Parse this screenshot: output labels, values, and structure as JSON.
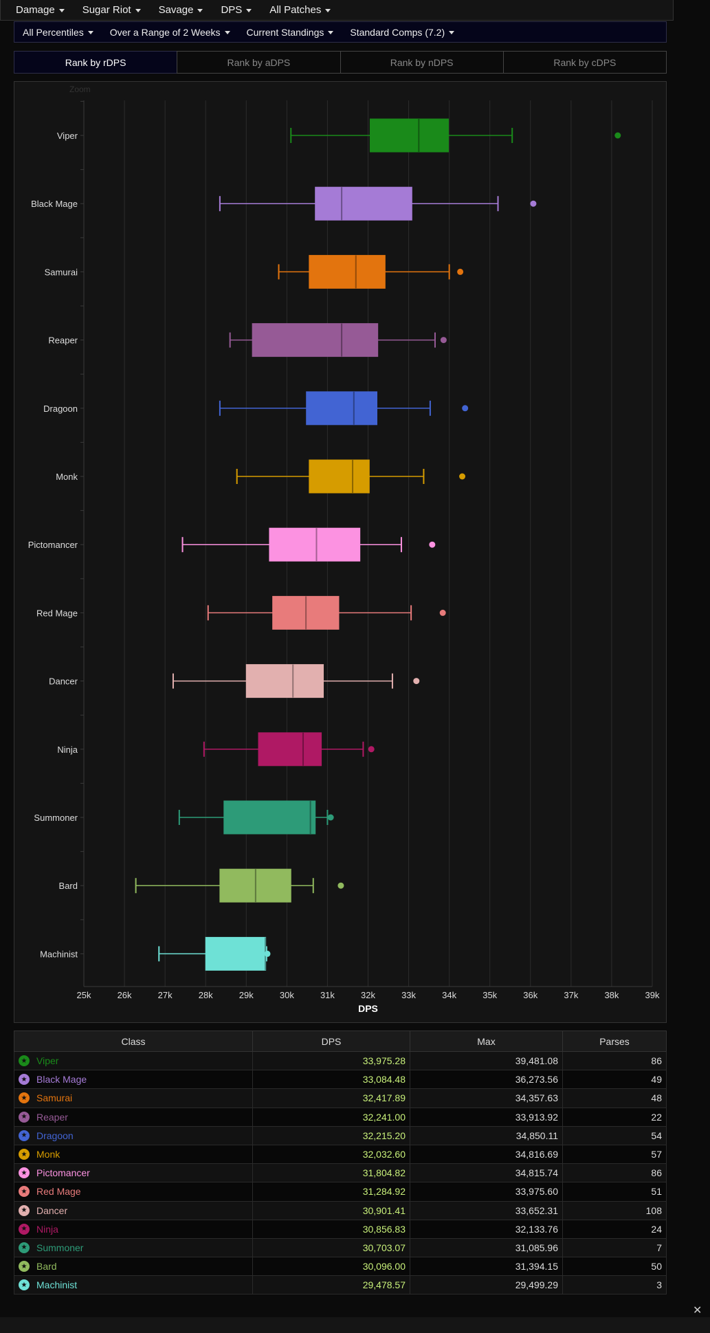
{
  "menu": [
    {
      "label": "Damage"
    },
    {
      "label": "Sugar Riot"
    },
    {
      "label": "Savage"
    },
    {
      "label": "DPS"
    },
    {
      "label": "All Patches"
    }
  ],
  "filters": [
    {
      "label": "All Percentiles"
    },
    {
      "label": "Over a Range of 2 Weeks"
    },
    {
      "label": "Current Standings"
    },
    {
      "label": "Standard Comps (7.2)"
    }
  ],
  "rank_tabs": [
    {
      "label": "Rank by rDPS",
      "active": true
    },
    {
      "label": "Rank by aDPS",
      "active": false
    },
    {
      "label": "Rank by nDPS",
      "active": false
    },
    {
      "label": "Rank by cDPS",
      "active": false
    }
  ],
  "zoom_label": "Zoom",
  "chart_data": {
    "type": "boxplot",
    "xlabel": "DPS",
    "xlim": [
      25000,
      39000
    ],
    "xticks": [
      25000,
      26000,
      27000,
      28000,
      29000,
      30000,
      31000,
      32000,
      33000,
      34000,
      35000,
      36000,
      37000,
      38000,
      39000
    ],
    "xtick_labels": [
      "25k",
      "26k",
      "27k",
      "28k",
      "29k",
      "30k",
      "31k",
      "32k",
      "33k",
      "34k",
      "35k",
      "36k",
      "37k",
      "38k",
      "39k"
    ],
    "grid": true,
    "series": [
      {
        "name": "Viper",
        "color": "#1a8a1a",
        "min": 30100,
        "q1": 32050,
        "median": 33250,
        "q3": 33980,
        "max": 35550,
        "outlier": 38150
      },
      {
        "name": "Black Mage",
        "color": "#a57bd6",
        "min": 28350,
        "q1": 30700,
        "median": 31350,
        "q3": 33080,
        "max": 35200,
        "outlier": 36070
      },
      {
        "name": "Samurai",
        "color": "#e3740e",
        "min": 29800,
        "q1": 30550,
        "median": 31700,
        "q3": 32420,
        "max": 34000,
        "outlier": 34270
      },
      {
        "name": "Reaper",
        "color": "#965a96",
        "min": 28600,
        "q1": 29150,
        "median": 31350,
        "q3": 32240,
        "max": 33650,
        "outlier": 33860
      },
      {
        "name": "Dragoon",
        "color": "#4264d3",
        "min": 28350,
        "q1": 30480,
        "median": 31650,
        "q3": 32220,
        "max": 33530,
        "outlier": 34390
      },
      {
        "name": "Monk",
        "color": "#d69c00",
        "min": 28770,
        "q1": 30550,
        "median": 31620,
        "q3": 32030,
        "max": 33370,
        "outlier": 34320
      },
      {
        "name": "Pictomancer",
        "color": "#fc92e1",
        "min": 27430,
        "q1": 29570,
        "median": 30730,
        "q3": 31800,
        "max": 32820,
        "outlier": 33580
      },
      {
        "name": "Red Mage",
        "color": "#e87b7b",
        "min": 28060,
        "q1": 29650,
        "median": 30470,
        "q3": 31280,
        "max": 33060,
        "outlier": 33840
      },
      {
        "name": "Dancer",
        "color": "#e2b0af",
        "min": 27200,
        "q1": 29000,
        "median": 30150,
        "q3": 30900,
        "max": 32600,
        "outlier": 33190
      },
      {
        "name": "Ninja",
        "color": "#af1964",
        "min": 27960,
        "q1": 29300,
        "median": 30400,
        "q3": 30850,
        "max": 31880,
        "outlier": 32080
      },
      {
        "name": "Summoner",
        "color": "#2d9b78",
        "min": 27350,
        "q1": 28450,
        "median": 30580,
        "q3": 30700,
        "max": 31000,
        "outlier": 31080
      },
      {
        "name": "Bard",
        "color": "#91ba5e",
        "min": 26280,
        "q1": 28350,
        "median": 29230,
        "q3": 30100,
        "max": 30650,
        "outlier": 31330
      },
      {
        "name": "Machinist",
        "color": "#6ee1d6",
        "min": 26850,
        "q1": 28000,
        "median": 29470,
        "q3": 29480,
        "max": 29500,
        "outlier": 29520
      }
    ]
  },
  "table": {
    "headers": [
      "Class",
      "DPS",
      "Max",
      "Parses"
    ],
    "rows": [
      {
        "class": "Viper",
        "color": "#1a8a1a",
        "dps": "33,975.28",
        "max": "39,481.08",
        "parses": "86"
      },
      {
        "class": "Black Mage",
        "color": "#a57bd6",
        "dps": "33,084.48",
        "max": "36,273.56",
        "parses": "49"
      },
      {
        "class": "Samurai",
        "color": "#e3740e",
        "dps": "32,417.89",
        "max": "34,357.63",
        "parses": "48"
      },
      {
        "class": "Reaper",
        "color": "#965a96",
        "dps": "32,241.00",
        "max": "33,913.92",
        "parses": "22"
      },
      {
        "class": "Dragoon",
        "color": "#4264d3",
        "dps": "32,215.20",
        "max": "34,850.11",
        "parses": "54"
      },
      {
        "class": "Monk",
        "color": "#d69c00",
        "dps": "32,032.60",
        "max": "34,816.69",
        "parses": "57"
      },
      {
        "class": "Pictomancer",
        "color": "#fc92e1",
        "dps": "31,804.82",
        "max": "34,815.74",
        "parses": "86"
      },
      {
        "class": "Red Mage",
        "color": "#e87b7b",
        "dps": "31,284.92",
        "max": "33,975.60",
        "parses": "51"
      },
      {
        "class": "Dancer",
        "color": "#e2b0af",
        "dps": "30,901.41",
        "max": "33,652.31",
        "parses": "108"
      },
      {
        "class": "Ninja",
        "color": "#af1964",
        "dps": "30,856.83",
        "max": "32,133.76",
        "parses": "24"
      },
      {
        "class": "Summoner",
        "color": "#2d9b78",
        "dps": "30,703.07",
        "max": "31,085.96",
        "parses": "7"
      },
      {
        "class": "Bard",
        "color": "#91ba5e",
        "dps": "30,096.00",
        "max": "31,394.15",
        "parses": "50"
      },
      {
        "class": "Machinist",
        "color": "#6ee1d6",
        "dps": "29,478.57",
        "max": "29,499.29",
        "parses": "3"
      }
    ]
  },
  "close_label": "✕"
}
